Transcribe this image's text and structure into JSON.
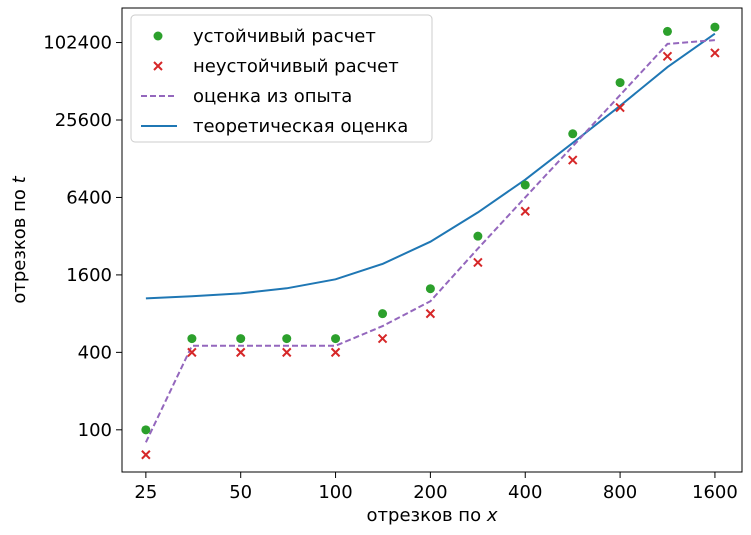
{
  "chart_data": {
    "type": "scatter",
    "scale": {
      "x": "log2",
      "y": "log2"
    },
    "xlabel": {
      "text": "отрезков по ",
      "var": "x"
    },
    "ylabel": {
      "text": "отрезков по ",
      "var": "t"
    },
    "xlim": [
      21,
      1950
    ],
    "ylim": [
      47,
      190000
    ],
    "xticks": [
      {
        "value": 25,
        "label": "25"
      },
      {
        "value": 50,
        "label": "50"
      },
      {
        "value": 100,
        "label": "100"
      },
      {
        "value": 200,
        "label": "200"
      },
      {
        "value": 400,
        "label": "400"
      },
      {
        "value": 800,
        "label": "800"
      },
      {
        "value": 1600,
        "label": "1600"
      }
    ],
    "yticks": [
      {
        "value": 100,
        "label": "100"
      },
      {
        "value": 400,
        "label": "400"
      },
      {
        "value": 1600,
        "label": "1600"
      },
      {
        "value": 6400,
        "label": "6400"
      },
      {
        "value": 25600,
        "label": "25600"
      },
      {
        "value": 102400,
        "label": "102400"
      }
    ],
    "legend_position": "top-left",
    "grid": false,
    "series": [
      {
        "name": "устойчивый расчет",
        "kind": "scatter-dot",
        "color": "#2ca02c",
        "points": [
          [
            25,
            100
          ],
          [
            35,
            512
          ],
          [
            50,
            512
          ],
          [
            70,
            512
          ],
          [
            100,
            512
          ],
          [
            141,
            800
          ],
          [
            200,
            1250
          ],
          [
            283,
            3200
          ],
          [
            400,
            8000
          ],
          [
            566,
            20000
          ],
          [
            800,
            50000
          ],
          [
            1131,
            125000
          ],
          [
            1600,
            135000
          ]
        ]
      },
      {
        "name": "неустойчивый расчет",
        "kind": "scatter-x",
        "color": "#d62728",
        "points": [
          [
            25,
            64
          ],
          [
            35,
            400
          ],
          [
            50,
            400
          ],
          [
            70,
            400
          ],
          [
            100,
            400
          ],
          [
            141,
            512
          ],
          [
            200,
            800
          ],
          [
            283,
            2000
          ],
          [
            400,
            5000
          ],
          [
            566,
            12500
          ],
          [
            800,
            32000
          ],
          [
            1131,
            80000
          ],
          [
            1600,
            85000
          ]
        ]
      },
      {
        "name": "оценка из опыта",
        "kind": "line-dashed",
        "color": "#9467bd",
        "points": [
          [
            25,
            80
          ],
          [
            35,
            450
          ],
          [
            50,
            450
          ],
          [
            70,
            450
          ],
          [
            100,
            450
          ],
          [
            141,
            640
          ],
          [
            200,
            1000
          ],
          [
            283,
            2560
          ],
          [
            400,
            6400
          ],
          [
            566,
            16000
          ],
          [
            800,
            40000
          ],
          [
            1131,
            100000
          ],
          [
            1600,
            107000
          ]
        ]
      },
      {
        "name": "теоретическая оценка",
        "kind": "line-solid",
        "color": "#1f77b4",
        "points": [
          [
            25,
            1050
          ],
          [
            35,
            1090
          ],
          [
            50,
            1150
          ],
          [
            70,
            1260
          ],
          [
            100,
            1480
          ],
          [
            141,
            1950
          ],
          [
            200,
            2900
          ],
          [
            283,
            4900
          ],
          [
            400,
            8800
          ],
          [
            566,
            17000
          ],
          [
            800,
            33000
          ],
          [
            1131,
            66000
          ],
          [
            1600,
            120000
          ]
        ]
      }
    ]
  }
}
